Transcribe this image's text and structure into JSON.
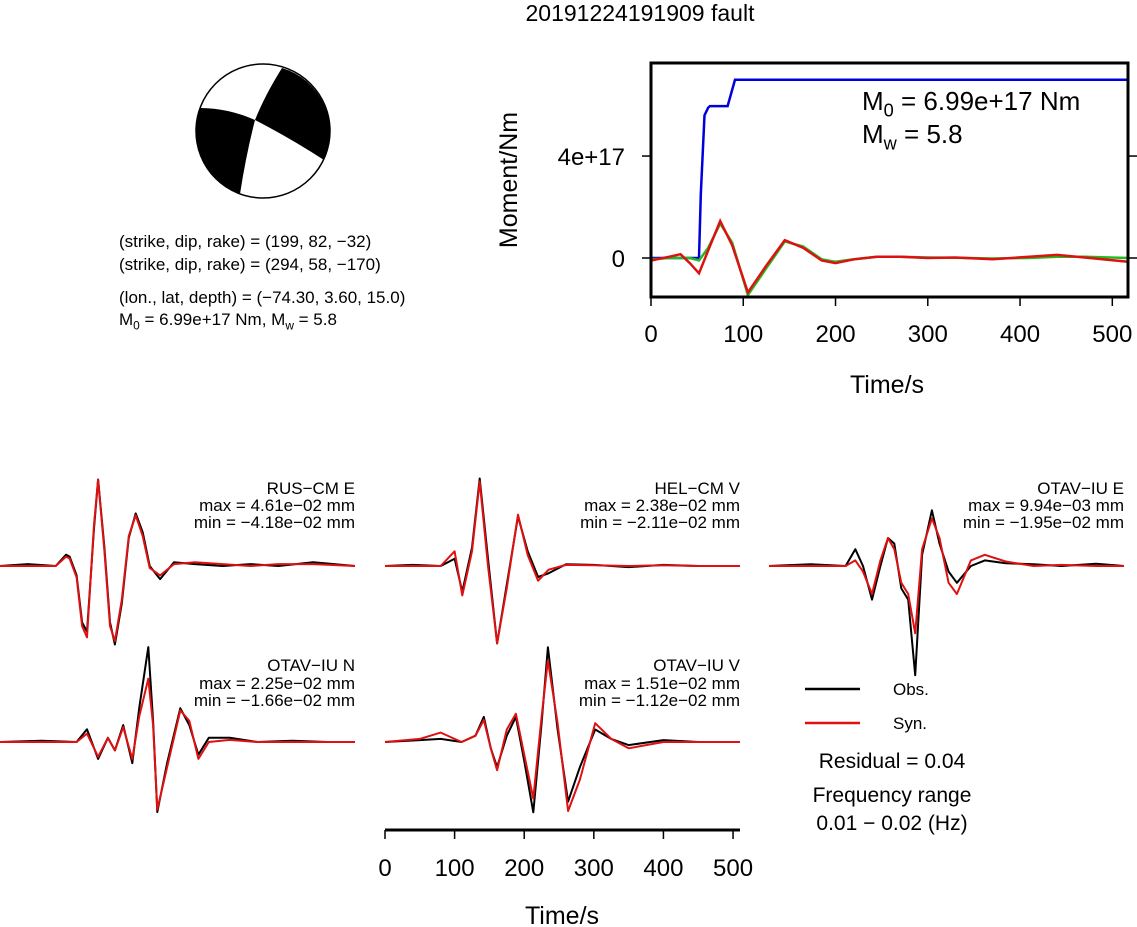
{
  "title": "20191224191909 fault",
  "mechanism": {
    "lines": [
      [
        {
          "text": "(strike, dip, rake) = (199, 82, −32)"
        }
      ],
      [
        {
          "text": "(strike, dip, rake) = (294, 58, −170)"
        }
      ],
      [
        {
          "text": "(lon., lat, depth) = (−74.30, 3.60, 15.0)"
        }
      ],
      [
        {
          "text": "M"
        },
        {
          "sub": "0"
        },
        {
          "text": " = 6.99e+17 Nm, M"
        },
        {
          "sub": "w"
        },
        {
          "text": " = 5.8"
        }
      ]
    ]
  },
  "chart_data": [
    {
      "type": "line",
      "xlabel": "Time/s",
      "ylabel": "Moment/Nm",
      "xlim": [
        0,
        517
      ],
      "xticks": [
        0,
        100,
        200,
        300,
        400,
        500
      ],
      "ylim": [
        -1.53e+17,
        7.65e+17
      ],
      "yticks": [
        0,
        {
          "value": 4e+17,
          "label": "4e+17"
        }
      ],
      "annotations": [
        [
          {
            "text": "M"
          },
          {
            "sub": "0"
          },
          {
            "text": " = 6.99e+17 Nm"
          }
        ],
        [
          {
            "text": "M"
          },
          {
            "sub": "w"
          },
          {
            "text": " = 5.8"
          }
        ]
      ],
      "series": [
        {
          "color": "#0000dd",
          "x": [
            0,
            52,
            54,
            58,
            62,
            64,
            83,
            91,
            517
          ],
          "values": [
            0,
            0,
            2.5e+17,
            5.6e+17,
            5.9e+17,
            5.96e+17,
            5.96e+17,
            6.99e+17,
            6.99e+17
          ]
        },
        {
          "color": "#22bb22",
          "x": [
            0,
            20,
            32,
            42,
            52,
            62,
            75,
            88,
            105,
            125,
            145,
            165,
            185,
            200,
            220,
            245,
            270,
            300,
            330,
            370,
            410,
            440,
            470,
            517
          ],
          "values": [
            -5000000000000000.0,
            0,
            0,
            0,
            -1e+16,
            4e+16,
            1.35e+17,
            6e+16,
            -1.45e+17,
            -4e+16,
            6.5e+16,
            4.5e+16,
            -5000000000000000.0,
            -1.5e+16,
            -5000000000000000.0,
            5000000000000000.0,
            5000000000000000.0,
            2000000000000000.0,
            1000000000000000.0,
            -2000000000000000.0,
            0,
            5000000000000000.0,
            5000000000000000.0,
            0
          ]
        },
        {
          "color": "#dd1111",
          "x": [
            0,
            20,
            32,
            42,
            52,
            62,
            75,
            88,
            105,
            125,
            145,
            165,
            185,
            200,
            220,
            245,
            270,
            300,
            330,
            370,
            410,
            440,
            470,
            517
          ],
          "values": [
            -1e+16,
            5000000000000000.0,
            1.5e+16,
            -2e+16,
            -6e+16,
            3e+16,
            1.45e+17,
            5e+16,
            -1.35e+17,
            -3e+16,
            7e+16,
            4e+16,
            -1e+16,
            -2e+16,
            -5000000000000000.0,
            5000000000000000.0,
            5000000000000000.0,
            0,
            2000000000000000.0,
            -5000000000000000.0,
            5000000000000000.0,
            1.2e+16,
            2000000000000000.0,
            -1.5e+16
          ]
        }
      ]
    },
    {
      "type": "waveform",
      "xlabel": "Time/s",
      "xlim": [
        0,
        510
      ],
      "xticks": [
        0,
        100,
        200,
        300,
        400,
        500
      ],
      "series": [
        {
          "name": "Obs.",
          "color": "#000000"
        },
        {
          "name": "Syn.",
          "color": "#e01010"
        }
      ],
      "annotations": [
        "Residual = 0.04",
        "Frequency range",
        "0.01 − 0.02 (Hz)"
      ],
      "panels": [
        {
          "station": "RUS−CM E",
          "max": "max = 4.61e−02 mm",
          "min": "min = −4.18e−02 mm",
          "x": [
            0,
            40,
            80,
            95,
            100,
            110,
            118,
            125,
            135,
            141,
            150,
            158,
            165,
            175,
            185,
            195,
            205,
            215,
            230,
            250,
            280,
            320,
            360,
            400,
            450,
            510
          ],
          "obs": [
            0,
            0.001,
            0,
            0.006,
            0.005,
            -0.005,
            -0.03,
            -0.035,
            0.02,
            0.0461,
            0.01,
            -0.03,
            -0.0418,
            -0.02,
            0.015,
            0.028,
            0.018,
            0,
            -0.007,
            0.002,
            0.001,
            0,
            0.001,
            0,
            0.002,
            0
          ],
          "syn": [
            0,
            0,
            0,
            0.005,
            0.004,
            -0.006,
            -0.032,
            -0.038,
            0.022,
            0.046,
            0.008,
            -0.032,
            -0.04,
            -0.018,
            0.016,
            0.027,
            0.016,
            -0.001,
            -0.005,
            0.001,
            0.002,
            0.001,
            0,
            0.001,
            0.001,
            0
          ]
        },
        {
          "station": "HEL−CM V",
          "max": "max = 2.38e−02 mm",
          "min": "min = −2.11e−02 mm",
          "x": [
            0,
            40,
            80,
            100,
            111,
            125,
            136,
            148,
            161,
            175,
            191,
            205,
            220,
            235,
            260,
            300,
            350,
            400,
            450,
            510
          ],
          "obs": [
            0,
            0.0003,
            0,
            0.002,
            -0.007,
            0.005,
            0.0238,
            0.002,
            -0.0211,
            -0.005,
            0.0135,
            0.004,
            -0.003,
            -0.002,
            0.0005,
            0.0003,
            -0.0003,
            0.0003,
            0,
            0
          ],
          "syn": [
            0,
            0,
            0,
            0.004,
            -0.008,
            0.004,
            0.023,
            0,
            -0.021,
            -0.006,
            0.014,
            0.003,
            -0.004,
            -0.001,
            0.0003,
            0.0002,
            0,
            0.0002,
            0,
            0
          ]
        },
        {
          "station": "OTAV−IU E",
          "max": "max = 9.94e−03 mm",
          "min": "min = −1.95e−02 mm",
          "x": [
            0,
            60,
            110,
            124,
            135,
            148,
            160,
            171,
            180,
            190,
            200,
            210,
            220,
            234,
            245,
            258,
            270,
            290,
            310,
            340,
            380,
            420,
            470,
            510
          ],
          "obs": [
            0,
            0.0003,
            0,
            0.003,
            0,
            -0.006,
            0,
            0.005,
            0.004,
            -0.004,
            -0.006,
            -0.0195,
            0.002,
            0.00994,
            0.004,
            -0.001,
            -0.003,
            0,
            0.001,
            0.0005,
            0.0003,
            0,
            0.0004,
            0
          ],
          "syn": [
            0,
            0,
            0,
            0.001,
            -0.001,
            -0.005,
            0.001,
            0.005,
            0.003,
            -0.003,
            -0.005,
            -0.012,
            0.003,
            0.0085,
            0.005,
            -0.003,
            -0.005,
            0.001,
            0.002,
            0.0008,
            0,
            0.0002,
            0,
            0
          ]
        },
        {
          "station": "OTAV−IU N",
          "max": "max = 2.25e−02 mm",
          "min": "min = −1.66e−02 mm",
          "x": [
            0,
            60,
            110,
            125,
            141,
            155,
            165,
            177,
            190,
            200,
            213,
            220,
            226,
            240,
            259,
            272,
            285,
            300,
            330,
            370,
            420,
            470,
            510
          ],
          "obs": [
            0,
            0.0003,
            0,
            0.003,
            -0.004,
            0.001,
            -0.002,
            0.004,
            -0.005,
            0.008,
            0.0225,
            0.005,
            -0.0166,
            -0.005,
            0.008,
            0.004,
            -0.003,
            0.001,
            0.001,
            0,
            0.0003,
            0,
            0
          ],
          "syn": [
            0,
            0,
            0,
            0.002,
            -0.0035,
            0.001,
            -0.002,
            0.0035,
            -0.004,
            0.006,
            0.015,
            0.004,
            -0.016,
            -0.006,
            0.0075,
            0.005,
            -0.004,
            0,
            0.0005,
            0,
            0,
            0,
            0
          ]
        },
        {
          "station": "OTAV−IU V",
          "max": "max = 1.51e−02 mm",
          "min": "min = −1.12e−02 mm",
          "x": [
            0,
            50,
            80,
            110,
            130,
            142,
            152,
            161,
            175,
            188,
            200,
            213,
            225,
            234,
            248,
            263,
            280,
            302,
            325,
            350,
            400,
            450,
            510
          ],
          "obs": [
            0,
            0.0003,
            0.0005,
            0,
            0.001,
            0.004,
            -0.001,
            -0.004,
            0.001,
            0.004,
            -0.003,
            -0.0112,
            0.003,
            0.0151,
            0.002,
            -0.0095,
            -0.004,
            0.002,
            0.0005,
            -0.0005,
            0.0003,
            0,
            0
          ],
          "syn": [
            0,
            0.0005,
            0.0015,
            0,
            0.001,
            0.0035,
            -0.001,
            -0.0045,
            0.002,
            0.0045,
            -0.002,
            -0.009,
            0.004,
            0.013,
            0.003,
            -0.011,
            -0.006,
            0.003,
            0.0005,
            -0.001,
            0,
            0,
            0
          ]
        }
      ]
    }
  ]
}
